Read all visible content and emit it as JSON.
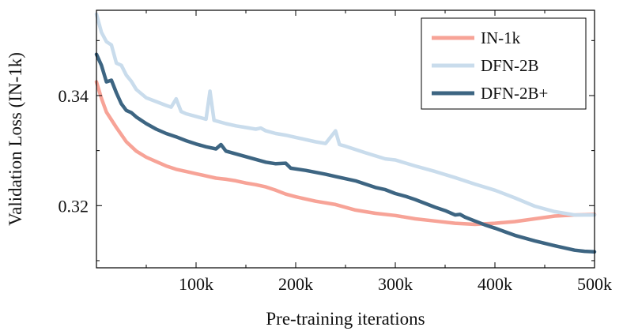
{
  "chart_data": {
    "type": "line",
    "title": "",
    "xlabel": "Pre-training iterations",
    "ylabel": "Validation Loss (IN-1k)",
    "xlim": [
      0,
      500000
    ],
    "ylim": [
      0.3087,
      0.3555
    ],
    "x_ticks": [
      {
        "value": 100000,
        "label": "100k"
      },
      {
        "value": 200000,
        "label": "200k"
      },
      {
        "value": 300000,
        "label": "300k"
      },
      {
        "value": 400000,
        "label": "400k"
      },
      {
        "value": 500000,
        "label": "500k"
      }
    ],
    "y_ticks": [
      {
        "value": 0.32,
        "label": "0.32"
      },
      {
        "value": 0.34,
        "label": "0.34"
      }
    ],
    "x_minor_ticks": [
      50000,
      150000,
      250000,
      350000,
      450000
    ],
    "y_minor_ticks": [
      0.31,
      0.33,
      0.35
    ],
    "legend_position": "top-right",
    "series": [
      {
        "name": "IN-1k",
        "color": "#f7a397",
        "x": [
          0,
          5000,
          10000,
          20000,
          30000,
          40000,
          50000,
          60000,
          70000,
          80000,
          90000,
          100000,
          110000,
          120000,
          130000,
          140000,
          150000,
          160000,
          170000,
          180000,
          190000,
          200000,
          220000,
          240000,
          260000,
          280000,
          300000,
          320000,
          340000,
          360000,
          380000,
          400000,
          420000,
          440000,
          460000,
          480000,
          500000
        ],
        "values": [
          0.3425,
          0.3395,
          0.337,
          0.3342,
          0.3316,
          0.3299,
          0.3288,
          0.328,
          0.3272,
          0.3266,
          0.3262,
          0.3258,
          0.3254,
          0.325,
          0.3248,
          0.3245,
          0.3241,
          0.3238,
          0.3234,
          0.3228,
          0.3221,
          0.3216,
          0.3208,
          0.3202,
          0.3192,
          0.3186,
          0.3182,
          0.3176,
          0.3172,
          0.3168,
          0.3166,
          0.3168,
          0.3171,
          0.3176,
          0.3181,
          0.3183,
          0.3184
        ]
      },
      {
        "name": "DFN-2B",
        "color": "#c9dcec",
        "x": [
          0,
          5000,
          10000,
          15000,
          20000,
          25000,
          30000,
          35000,
          40000,
          50000,
          60000,
          70000,
          75000,
          80000,
          85000,
          90000,
          100000,
          110000,
          114000,
          118000,
          130000,
          140000,
          150000,
          160000,
          165000,
          170000,
          180000,
          190000,
          200000,
          220000,
          230000,
          240000,
          244000,
          250000,
          270000,
          290000,
          300000,
          320000,
          340000,
          360000,
          380000,
          400000,
          420000,
          440000,
          460000,
          480000,
          490000,
          500000
        ],
        "values": [
          0.3548,
          0.3515,
          0.3498,
          0.3492,
          0.3459,
          0.3455,
          0.3437,
          0.3426,
          0.3411,
          0.3396,
          0.3389,
          0.3382,
          0.3379,
          0.3394,
          0.3371,
          0.3367,
          0.3362,
          0.3357,
          0.3408,
          0.3355,
          0.3349,
          0.3345,
          0.3342,
          0.3339,
          0.3341,
          0.3336,
          0.3331,
          0.3328,
          0.3324,
          0.3316,
          0.3313,
          0.3336,
          0.3311,
          0.3308,
          0.3296,
          0.3285,
          0.3283,
          0.3272,
          0.3262,
          0.3251,
          0.3239,
          0.3228,
          0.3214,
          0.3199,
          0.3189,
          0.3183,
          0.3183,
          0.3183
        ]
      },
      {
        "name": "DFN-2B+",
        "color": "#3d6582",
        "x": [
          0,
          5000,
          10000,
          15000,
          20000,
          25000,
          30000,
          35000,
          40000,
          50000,
          60000,
          70000,
          80000,
          90000,
          100000,
          110000,
          120000,
          125000,
          130000,
          140000,
          150000,
          160000,
          170000,
          180000,
          190000,
          195000,
          210000,
          230000,
          240000,
          245000,
          260000,
          280000,
          290000,
          300000,
          310000,
          320000,
          330000,
          340000,
          350000,
          360000,
          365000,
          370000,
          380000,
          390000,
          400000,
          420000,
          440000,
          460000,
          480000,
          490000,
          500000
        ],
        "values": [
          0.3475,
          0.3455,
          0.3425,
          0.3428,
          0.3405,
          0.3385,
          0.3373,
          0.3369,
          0.3361,
          0.3349,
          0.3339,
          0.3331,
          0.3325,
          0.3318,
          0.3312,
          0.3307,
          0.3303,
          0.3311,
          0.3299,
          0.3294,
          0.3289,
          0.3284,
          0.3279,
          0.3276,
          0.3277,
          0.3268,
          0.3264,
          0.3257,
          0.3253,
          0.3251,
          0.3245,
          0.3233,
          0.3229,
          0.3222,
          0.3217,
          0.3211,
          0.3204,
          0.3197,
          0.3191,
          0.3183,
          0.3184,
          0.3179,
          0.3172,
          0.3165,
          0.3159,
          0.3146,
          0.3136,
          0.3127,
          0.3119,
          0.3117,
          0.3116
        ]
      }
    ]
  }
}
